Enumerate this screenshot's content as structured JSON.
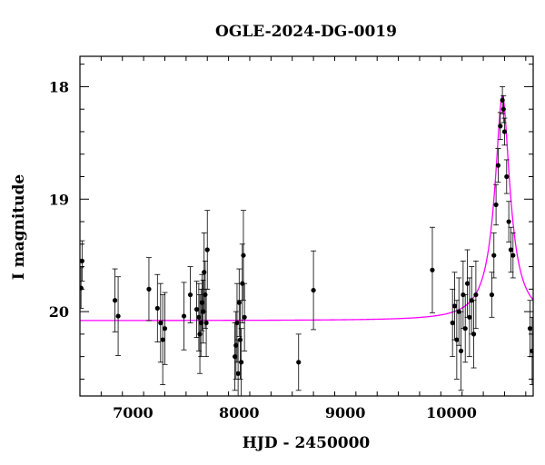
{
  "chart_data": {
    "type": "scatter",
    "title": "OGLE-2024-DG-0019",
    "xlabel": "HJD - 2450000",
    "ylabel": "I magnitude",
    "xlim": [
      6500,
      10770
    ],
    "ylim": [
      20.75,
      17.73
    ],
    "y_inverted": true,
    "xticks": [
      7000,
      8000,
      9000,
      10000
    ],
    "yticks": [
      18,
      19,
      20
    ],
    "grid": false,
    "colors": {
      "points": "#000000",
      "model": "#ff00ff",
      "errorbars": "#000000"
    },
    "series": [
      {
        "kind": "points_with_errors",
        "points": [
          [
            6510,
            19.79,
            0.18
          ],
          [
            6520,
            19.55,
            0.18
          ],
          [
            6830,
            19.9,
            0.28
          ],
          [
            6860,
            20.04,
            0.35
          ],
          [
            7150,
            19.8,
            0.28
          ],
          [
            7230,
            19.97,
            0.3
          ],
          [
            7260,
            20.1,
            0.35
          ],
          [
            7280,
            20.25,
            0.4
          ],
          [
            7300,
            20.15,
            0.32
          ],
          [
            7480,
            20.04,
            0.3
          ],
          [
            7540,
            19.85,
            0.25
          ],
          [
            7600,
            19.98,
            0.25
          ],
          [
            7620,
            20.05,
            0.3
          ],
          [
            7630,
            20.2,
            0.35
          ],
          [
            7640,
            20.1,
            0.3
          ],
          [
            7650,
            19.92,
            0.25
          ],
          [
            7660,
            20.0,
            0.28
          ],
          [
            7670,
            19.65,
            0.35
          ],
          [
            7680,
            19.85,
            0.3
          ],
          [
            7690,
            20.1,
            0.3
          ],
          [
            7700,
            19.45,
            0.35
          ],
          [
            7960,
            20.4,
            0.3
          ],
          [
            7970,
            20.3,
            0.3
          ],
          [
            7980,
            20.1,
            0.35
          ],
          [
            7990,
            20.55,
            0.3
          ],
          [
            8000,
            19.92,
            0.3
          ],
          [
            8010,
            20.25,
            0.35
          ],
          [
            8020,
            20.45,
            0.3
          ],
          [
            8030,
            19.75,
            0.35
          ],
          [
            8040,
            19.5,
            0.4
          ],
          [
            8050,
            20.05,
            0.3
          ],
          [
            8560,
            20.45,
            0.25
          ],
          [
            8700,
            19.81,
            0.35
          ],
          [
            9820,
            19.63,
            0.38
          ],
          [
            10010,
            20.1,
            0.3
          ],
          [
            10030,
            19.95,
            0.3
          ],
          [
            10050,
            20.25,
            0.35
          ],
          [
            10070,
            20.0,
            0.3
          ],
          [
            10090,
            20.35,
            0.35
          ],
          [
            10110,
            19.85,
            0.3
          ],
          [
            10130,
            20.15,
            0.3
          ],
          [
            10150,
            19.75,
            0.3
          ],
          [
            10170,
            20.05,
            0.35
          ],
          [
            10190,
            19.9,
            0.3
          ],
          [
            10210,
            20.2,
            0.3
          ],
          [
            10230,
            19.85,
            0.3
          ],
          [
            10380,
            19.85,
            0.2
          ],
          [
            10400,
            19.5,
            0.2
          ],
          [
            10420,
            19.05,
            0.18
          ],
          [
            10440,
            18.7,
            0.15
          ],
          [
            10460,
            18.35,
            0.12
          ],
          [
            10480,
            18.12,
            0.12
          ],
          [
            10490,
            18.2,
            0.12
          ],
          [
            10500,
            18.4,
            0.12
          ],
          [
            10520,
            18.8,
            0.15
          ],
          [
            10540,
            19.2,
            0.18
          ],
          [
            10560,
            19.45,
            0.2
          ],
          [
            10580,
            19.5,
            0.2
          ],
          [
            10740,
            20.15,
            0.25
          ],
          [
            10760,
            20.35,
            0.3
          ]
        ]
      },
      {
        "kind": "model_curve",
        "baseline": 20.08,
        "peak_t": 10480,
        "peak_mag": 18.08,
        "timescale": 55
      }
    ]
  }
}
